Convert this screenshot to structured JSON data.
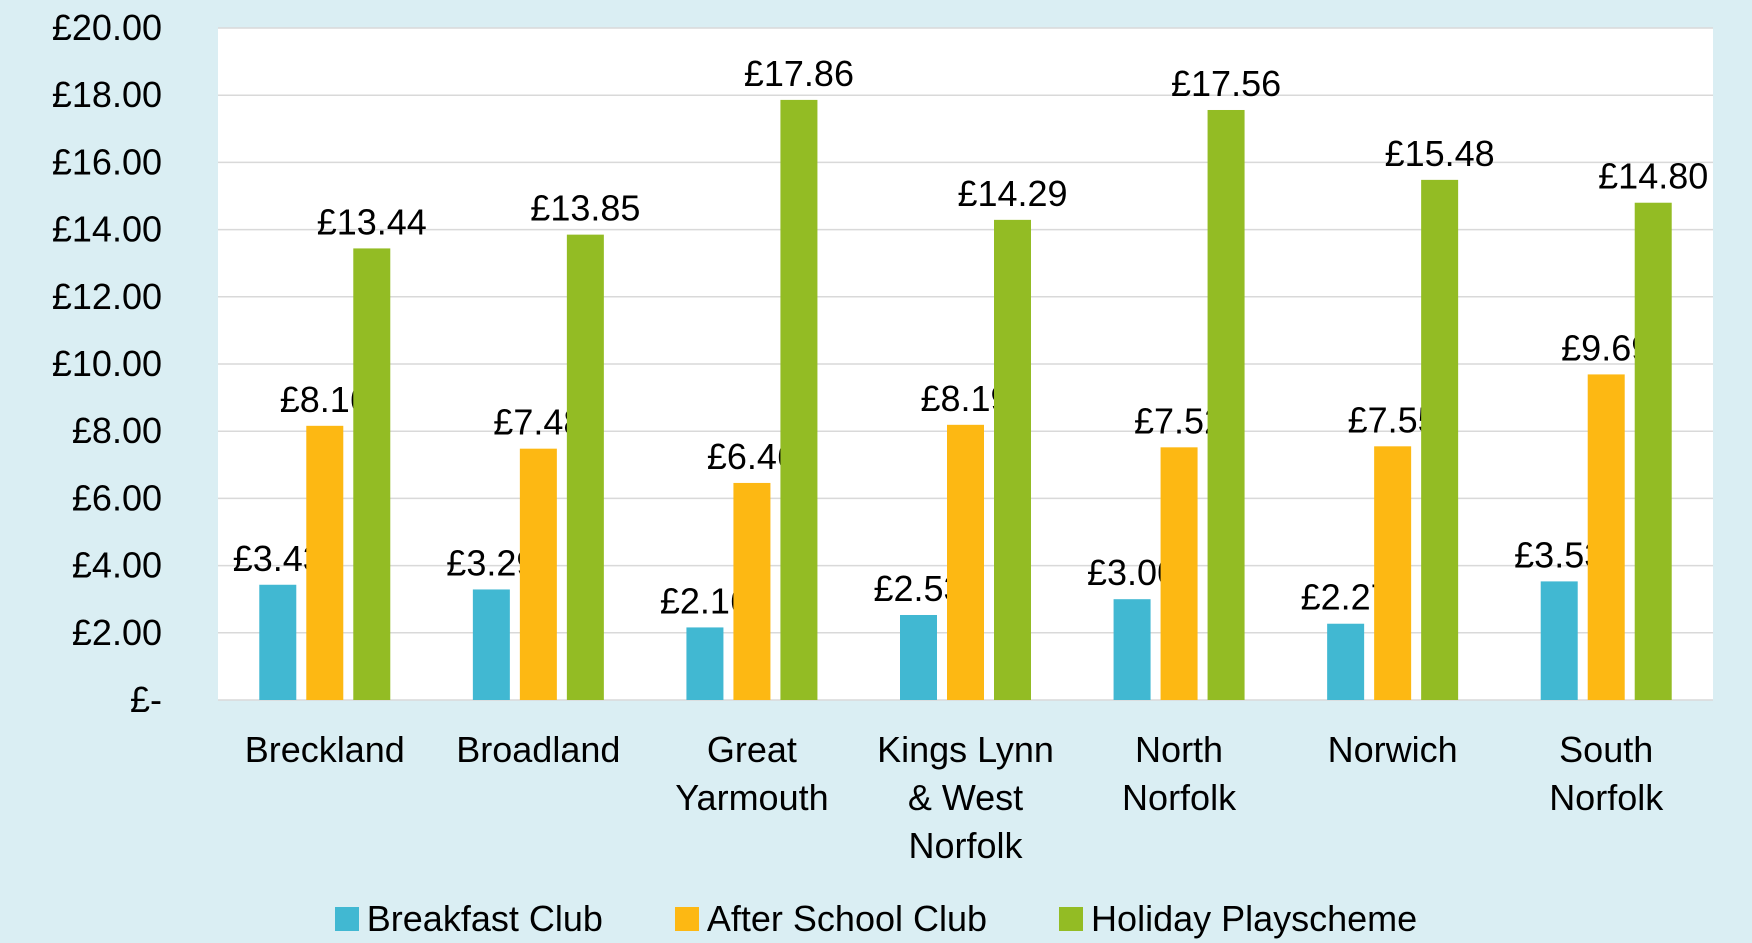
{
  "chart_data": {
    "type": "bar",
    "categories": [
      "Breckland",
      "Broadland",
      "Great Yarmouth",
      "Kings Lynn & West Norfolk",
      "North Norfolk",
      "Norwich",
      "South Norfolk"
    ],
    "series": [
      {
        "name": "Breakfast Club",
        "color": "#41b8d2",
        "values": [
          3.43,
          3.29,
          2.16,
          2.53,
          3.0,
          2.27,
          3.53
        ],
        "value_labels": [
          "£3.43",
          "£3.29",
          "£2.16",
          "£2.53",
          "£3.00",
          "£2.27",
          "£3.53"
        ]
      },
      {
        "name": "After School Club",
        "color": "#fdb813",
        "values": [
          8.16,
          7.48,
          6.46,
          8.19,
          7.52,
          7.55,
          9.69
        ],
        "value_labels": [
          "£8.16",
          "£7.48",
          "£6.46",
          "£8.19",
          "£7.52",
          "£7.55",
          "£9.69"
        ]
      },
      {
        "name": "Holiday Playscheme",
        "color": "#93bc24",
        "values": [
          13.44,
          13.85,
          17.86,
          14.29,
          17.56,
          15.48,
          14.8
        ],
        "value_labels": [
          "£13.44",
          "£13.85",
          "£17.86",
          "£14.29",
          "£17.56",
          "£15.48",
          "£14.80"
        ]
      }
    ],
    "ylim": [
      0,
      20
    ],
    "yticks": [
      {
        "value": 0,
        "label": "£-"
      },
      {
        "value": 2,
        "label": "£2.00"
      },
      {
        "value": 4,
        "label": "£4.00"
      },
      {
        "value": 6,
        "label": "£6.00"
      },
      {
        "value": 8,
        "label": "£8.00"
      },
      {
        "value": 10,
        "label": "£10.00"
      },
      {
        "value": 12,
        "label": "£12.00"
      },
      {
        "value": 14,
        "label": "£14.00"
      },
      {
        "value": 16,
        "label": "£16.00"
      },
      {
        "value": 18,
        "label": "£18.00"
      },
      {
        "value": 20,
        "label": "£20.00"
      }
    ],
    "grid": true,
    "legend": "bottom"
  }
}
